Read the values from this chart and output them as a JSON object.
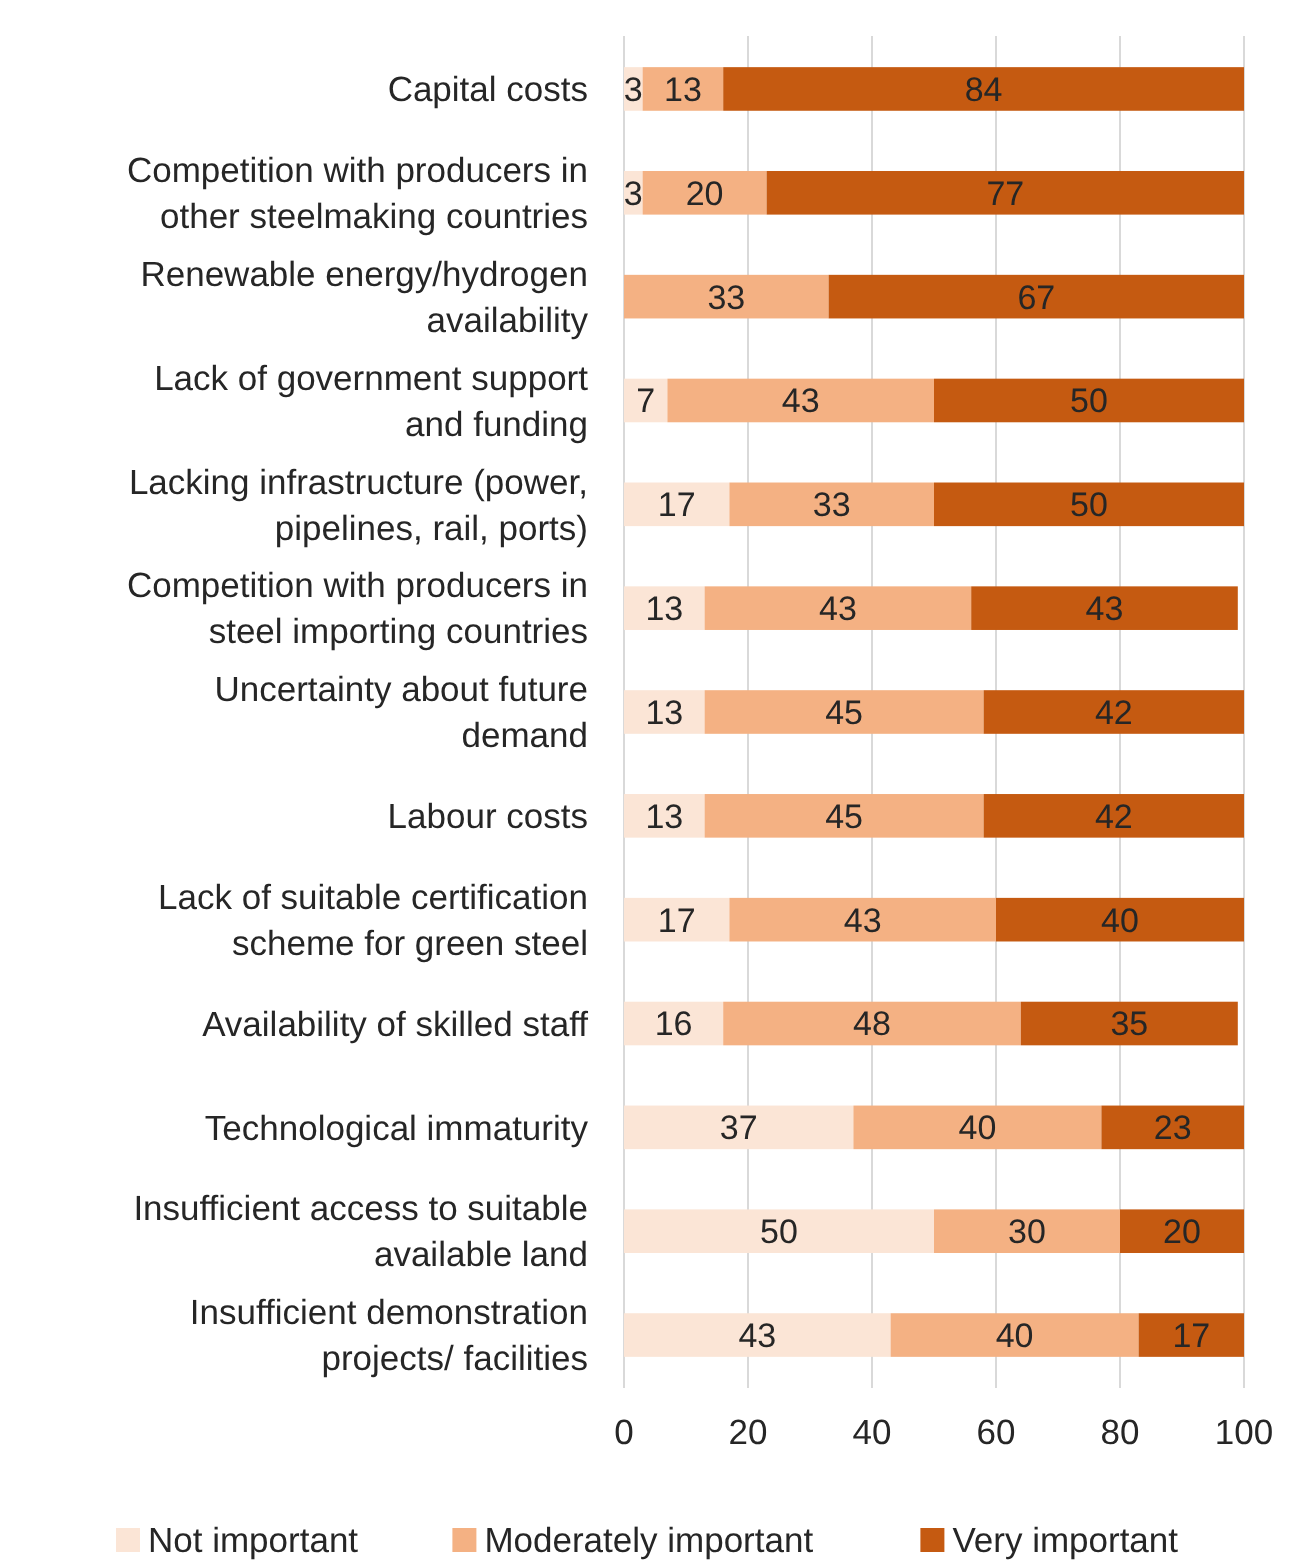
{
  "chart_data": {
    "type": "bar",
    "orientation": "horizontal",
    "stacked": true,
    "data_labels": true,
    "grid": "x",
    "legend": "bottom",
    "categories": [
      "Capital costs",
      "Competition with producers in\nother steelmaking countries",
      "Renewable energy/hydrogen\navailability",
      "Lack of government support\nand funding",
      "Lacking infrastructure (power,\npipelines, rail, ports)",
      "Competition with producers in\nsteel importing countries",
      "Uncertainty about future\ndemand",
      "Labour costs",
      "Lack of suitable certification\nscheme for green steel",
      "Availability of skilled staff",
      "Technological immaturity",
      "Insufficient access to suitable\navailable land",
      "Insufficient demonstration\nprojects/ facilities"
    ],
    "xlim": [
      0,
      100
    ],
    "xticks": [
      0,
      20,
      40,
      60,
      80,
      100
    ],
    "series": [
      {
        "name": "Not important",
        "color": "#fbe5d6",
        "values": [
          3,
          3,
          null,
          7,
          17,
          13,
          13,
          13,
          17,
          16,
          37,
          50,
          43
        ]
      },
      {
        "name": "Moderately important",
        "color": "#f4b183",
        "values": [
          13,
          20,
          33,
          43,
          33,
          43,
          45,
          45,
          43,
          48,
          40,
          30,
          40
        ]
      },
      {
        "name": "Very important",
        "color": "#c55a11",
        "values": [
          84,
          77,
          67,
          50,
          50,
          43,
          42,
          42,
          40,
          35,
          23,
          20,
          17
        ]
      }
    ]
  }
}
